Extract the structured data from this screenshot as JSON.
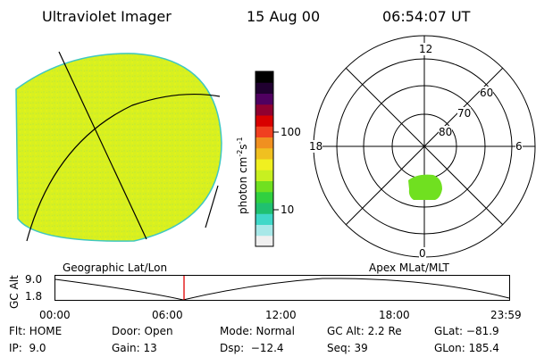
{
  "header": {
    "instrument": "Ultraviolet Imager",
    "date": "15 Aug 00",
    "time": "06:54:07 UT"
  },
  "left_panel": {
    "fill_color": "#d8f020",
    "edge_color": "#40c8c0"
  },
  "colorbar": {
    "unit_label": "photon cm",
    "unit_exp1": "-2",
    "unit_mid": "s",
    "unit_exp2": "-1",
    "tick_100": "100",
    "tick_10": "10",
    "colors": [
      "#f0f0f0",
      "#a8e8e8",
      "#40d8c8",
      "#20c070",
      "#30d040",
      "#70e020",
      "#c8f020",
      "#f0f020",
      "#f0c020",
      "#f09020",
      "#f04020",
      "#d80000",
      "#900030",
      "#500060",
      "#200030",
      "#000000"
    ]
  },
  "polar": {
    "mlt_12": "12",
    "mlt_18": "18",
    "mlt_6": "6",
    "mlt_0": "0",
    "lat_60": "60",
    "lat_70": "70",
    "lat_80": "80",
    "blob_color": "#70e020"
  },
  "labels": {
    "geo": "Geographic Lat/Lon",
    "apex": "Apex MLat/MLT"
  },
  "timeline": {
    "ylabel": "GC Alt",
    "y_top": "9.0",
    "y_bottom": "1.8",
    "ticks": [
      "00:00",
      "06:00",
      "12:00",
      "18:00",
      "23:59"
    ],
    "marker_color": "#e00000"
  },
  "info": {
    "flt": "Flt: HOME",
    "ip": "IP:  9.0",
    "door": "Door: Open",
    "gain": "Gain: 13",
    "mode": "Mode: Normal",
    "dsp": "Dsp:  −12.4",
    "gcalt": "GC Alt: 2.2 Re",
    "seq": "Seq: 39",
    "glat": "GLat: −81.9",
    "glon": "GLon: 185.4"
  }
}
